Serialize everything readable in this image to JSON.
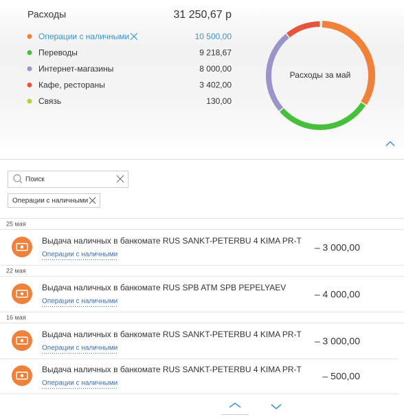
{
  "summary": {
    "title": "Расходы",
    "total": "31 250,67 р"
  },
  "chart_data": {
    "type": "donut",
    "center_label": "Расходы за май",
    "categories": [
      "Операции с наличными",
      "Переводы",
      "Интернет-магазины",
      "Кафе, рестораны",
      "Связь"
    ],
    "values": [
      10500,
      9218.67,
      8000,
      3402,
      130
    ],
    "value_labels": [
      "10 500,00",
      "9 218,67",
      "8 000,00",
      "3 402,00",
      "130,00"
    ],
    "colors": [
      "#f0813a",
      "#46c03b",
      "#9a95c8",
      "#e5553b",
      "#b5d334"
    ],
    "selected": 0
  },
  "search": {
    "placeholder": "Поиск",
    "filter": "Операции с наличными"
  },
  "groups": [
    {
      "date": "25 мая",
      "items": [
        {
          "description": "Выдача наличных в банкомате RUS SANKT-PETERBU 4 KIMA PR-T",
          "category": "Операции с наличными",
          "amount": "– 3 000,00"
        }
      ]
    },
    {
      "date": "22 мая",
      "items": [
        {
          "description": "Выдача наличных в банкомате RUS SPB ATM SPB PEPELYAEV",
          "category": "Операции с наличными",
          "amount": "– 4 000,00"
        }
      ]
    },
    {
      "date": "16 мая",
      "items": [
        {
          "description": "Выдача наличных в банкомате RUS SANKT-PETERBU 4 KIMA PR-T",
          "category": "Операции с наличными",
          "amount": "– 3 000,00"
        },
        {
          "description": "Выдача наличных в банкомате RUS SANKT-PETERBU 4 KIMA PR-T",
          "category": "Операции с наличными",
          "amount": "– 500,00"
        }
      ]
    }
  ]
}
